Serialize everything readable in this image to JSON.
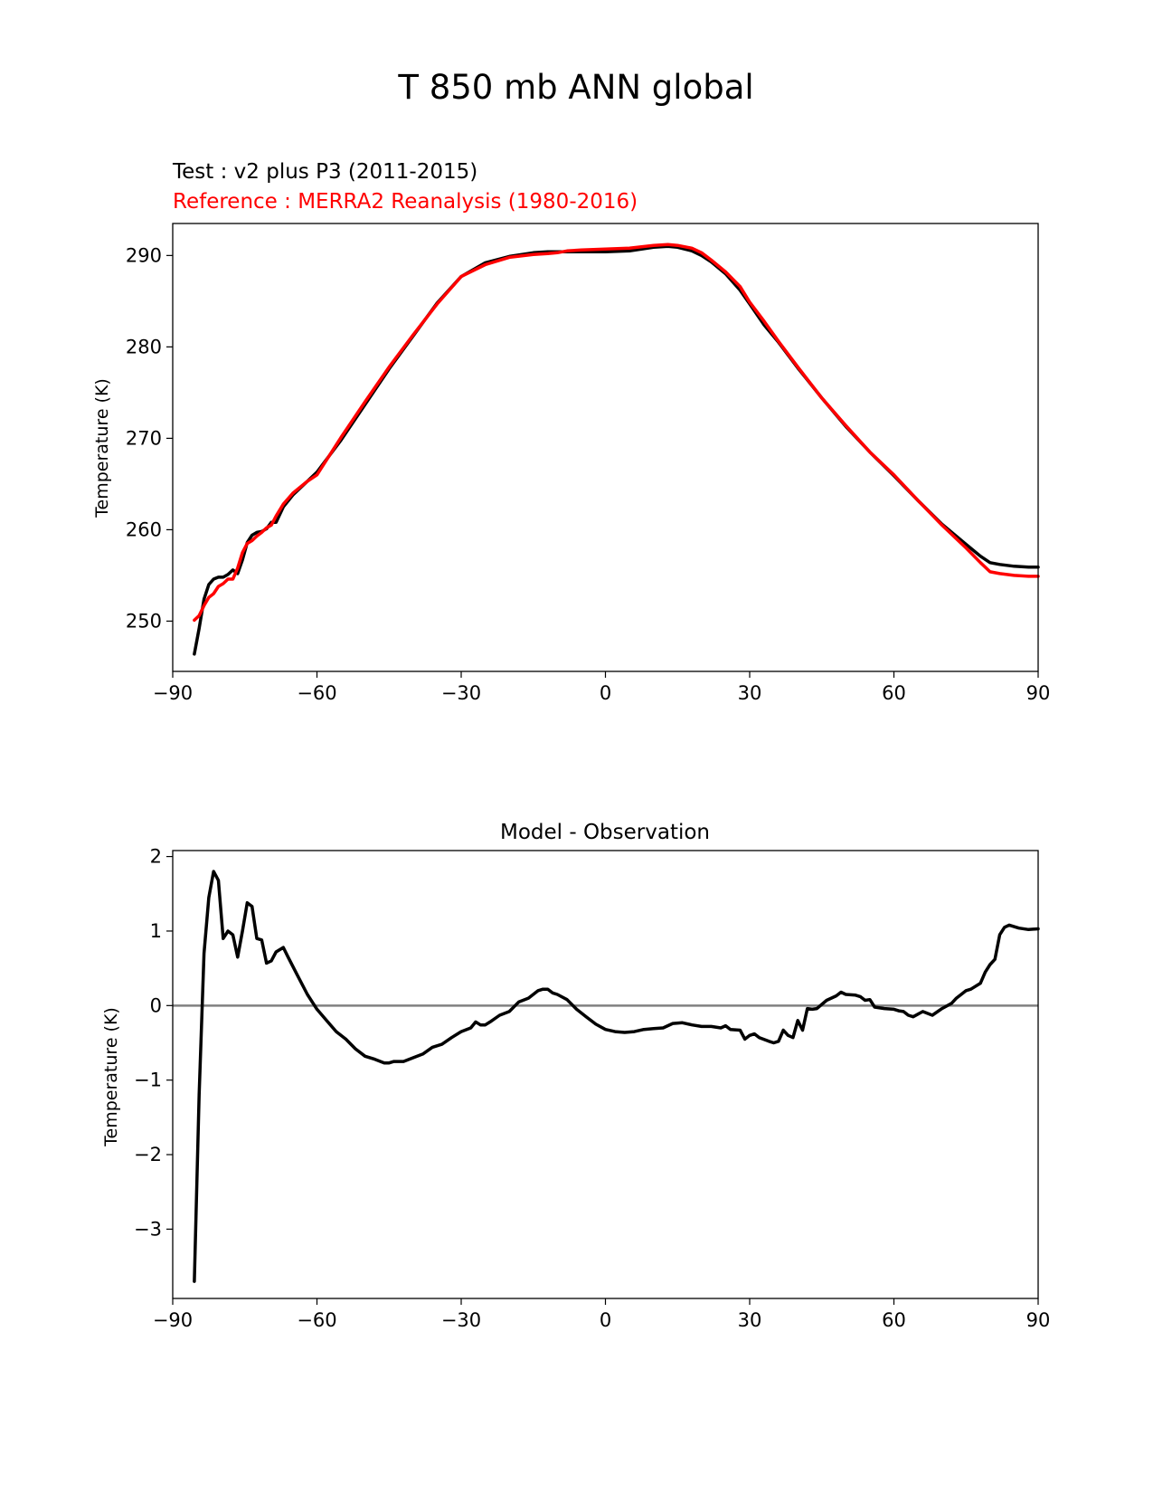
{
  "figure": {
    "title": "T 850 mb ANN global"
  },
  "chart_data": [
    {
      "type": "line",
      "subtitle_test": "Test : v2 plus P3 (2011-2015)",
      "subtitle_reference": "Reference : MERRA2 Reanalysis (1980-2016)",
      "xlabel": "",
      "ylabel": "Temperature (K)",
      "xlim": [
        -90,
        90
      ],
      "ylim": [
        244.5,
        293.5
      ],
      "xticks": [
        -90,
        -60,
        -30,
        0,
        30,
        60,
        90
      ],
      "xtick_labels": [
        "−90",
        "−60",
        "−30",
        "0",
        "30",
        "60",
        "90"
      ],
      "yticks": [
        250,
        260,
        270,
        280,
        290
      ],
      "ytick_labels": [
        "250",
        "260",
        "270",
        "280",
        "290"
      ],
      "series": [
        {
          "name": "Test : v2 plus P3 (2011-2015)",
          "color": "#000000",
          "x": [
            -85.5,
            -84.5,
            -83.5,
            -82.5,
            -81.5,
            -80.5,
            -79.5,
            -78.5,
            -77.5,
            -76.5,
            -75.5,
            -74.5,
            -73.5,
            -72.5,
            -71.5,
            -70.5,
            -69.5,
            -68.5,
            -67,
            -65,
            -62,
            -60,
            -55,
            -50,
            -45,
            -40,
            -35,
            -30,
            -25,
            -20,
            -15,
            -12,
            -10,
            -8,
            -5,
            0,
            5,
            10,
            13,
            15,
            18,
            20,
            22,
            25,
            28,
            30,
            33,
            36,
            40,
            45,
            50,
            55,
            60,
            65,
            70,
            75,
            78,
            80,
            82,
            85,
            88,
            90
          ],
          "values": [
            246.4,
            249.2,
            252.4,
            254.0,
            254.6,
            254.8,
            254.8,
            255.1,
            255.6,
            255.2,
            256.7,
            258.6,
            259.4,
            259.7,
            259.8,
            260.1,
            260.8,
            260.8,
            262.5,
            263.8,
            265.3,
            266.3,
            269.8,
            273.7,
            277.6,
            281.2,
            284.8,
            287.7,
            289.2,
            289.9,
            290.3,
            290.4,
            290.4,
            290.4,
            290.4,
            290.4,
            290.5,
            290.9,
            291.0,
            290.9,
            290.5,
            290.0,
            289.3,
            288.0,
            286.2,
            284.7,
            282.4,
            280.5,
            277.7,
            274.4,
            271.3,
            268.5,
            265.9,
            263.2,
            260.6,
            258.4,
            257.1,
            256.4,
            256.2,
            256.0,
            255.9,
            255.9
          ]
        },
        {
          "name": "Reference : MERRA2 Reanalysis (1980-2016)",
          "color": "#ff0000",
          "x": [
            -85.5,
            -84.5,
            -83.5,
            -82.5,
            -81.5,
            -80.5,
            -79.5,
            -78.5,
            -77.5,
            -76.5,
            -75.5,
            -74.5,
            -73.5,
            -72.5,
            -71.5,
            -70.5,
            -69.5,
            -68.5,
            -67,
            -65,
            -62,
            -60,
            -55,
            -50,
            -45,
            -40,
            -35,
            -30,
            -25,
            -20,
            -15,
            -12,
            -10,
            -8,
            -5,
            0,
            5,
            10,
            13,
            15,
            18,
            20,
            22,
            25,
            28,
            30,
            33,
            36,
            40,
            45,
            50,
            55,
            60,
            65,
            70,
            75,
            78,
            80,
            82,
            85,
            88,
            90
          ],
          "values": [
            250.1,
            250.6,
            251.7,
            252.6,
            253.0,
            253.8,
            254.1,
            254.6,
            254.6,
            255.8,
            257.5,
            258.5,
            258.8,
            259.3,
            259.7,
            260.2,
            260.5,
            261.5,
            262.8,
            264.0,
            265.3,
            266.0,
            270.1,
            274.0,
            277.8,
            281.3,
            284.7,
            287.7,
            289.0,
            289.8,
            290.1,
            290.2,
            290.3,
            290.5,
            290.6,
            290.7,
            290.8,
            291.1,
            291.2,
            291.1,
            290.8,
            290.3,
            289.5,
            288.2,
            286.6,
            284.9,
            282.8,
            280.6,
            277.8,
            274.4,
            271.4,
            268.5,
            266.0,
            263.2,
            260.5,
            258.0,
            256.4,
            255.4,
            255.2,
            255.0,
            254.9,
            254.9
          ]
        }
      ]
    },
    {
      "type": "line",
      "title": "Model - Observation",
      "xlabel": "",
      "ylabel": "Temperature (K)",
      "xlim": [
        -90,
        90
      ],
      "ylim": [
        -3.93,
        2.08
      ],
      "xticks": [
        -90,
        -60,
        -30,
        0,
        30,
        60,
        90
      ],
      "xtick_labels": [
        "−90",
        "−60",
        "−30",
        "0",
        "30",
        "60",
        "90"
      ],
      "yticks": [
        -3,
        -2,
        -1,
        0,
        1,
        2
      ],
      "ytick_labels": [
        "−3",
        "−2",
        "−1",
        "0",
        "1",
        "2"
      ],
      "reference_line": {
        "value": 0,
        "color": "#808080"
      },
      "series": [
        {
          "name": "Model - Observation",
          "color": "#000000",
          "x": [
            -85.5,
            -84.5,
            -83.5,
            -82.5,
            -81.5,
            -80.5,
            -79.5,
            -78.5,
            -77.5,
            -76.5,
            -75.5,
            -74.5,
            -73.5,
            -72.5,
            -71.5,
            -70.5,
            -69.5,
            -68.5,
            -67,
            -66,
            -64,
            -62,
            -60,
            -58,
            -56,
            -54,
            -52,
            -50,
            -48,
            -46,
            -45,
            -44,
            -42,
            -40,
            -38,
            -36,
            -34,
            -32,
            -30,
            -28,
            -27,
            -26,
            -25,
            -24,
            -22,
            -20,
            -18,
            -16,
            -14,
            -13,
            -12,
            -11,
            -10,
            -8,
            -6,
            -4,
            -2,
            0,
            2,
            4,
            6,
            8,
            10,
            12,
            14,
            16,
            18,
            20,
            22,
            24,
            25,
            26,
            28,
            29,
            30,
            31,
            32,
            34,
            35,
            36,
            37,
            38,
            39,
            40,
            41,
            42,
            43,
            44,
            46,
            48,
            49,
            50,
            52,
            53,
            54,
            55,
            56,
            58,
            60,
            61,
            62,
            63,
            64,
            66,
            68,
            70,
            72,
            73,
            74,
            75,
            76,
            78,
            79,
            80,
            81,
            82,
            83,
            84,
            86,
            88,
            90
          ],
          "values": [
            -3.7,
            -1.2,
            0.7,
            1.45,
            1.8,
            1.68,
            0.9,
            1.0,
            0.95,
            0.65,
            1.0,
            1.38,
            1.33,
            0.9,
            0.88,
            0.57,
            0.6,
            0.72,
            0.78,
            0.65,
            0.4,
            0.15,
            -0.05,
            -0.2,
            -0.35,
            -0.45,
            -0.58,
            -0.68,
            -0.72,
            -0.77,
            -0.77,
            -0.75,
            -0.75,
            -0.7,
            -0.65,
            -0.56,
            -0.52,
            -0.43,
            -0.35,
            -0.3,
            -0.22,
            -0.26,
            -0.26,
            -0.22,
            -0.13,
            -0.08,
            0.05,
            0.1,
            0.2,
            0.22,
            0.22,
            0.17,
            0.15,
            0.08,
            -0.05,
            -0.15,
            -0.25,
            -0.32,
            -0.35,
            -0.36,
            -0.35,
            -0.32,
            -0.31,
            -0.3,
            -0.24,
            -0.23,
            -0.26,
            -0.28,
            -0.28,
            -0.3,
            -0.27,
            -0.32,
            -0.33,
            -0.45,
            -0.4,
            -0.38,
            -0.43,
            -0.48,
            -0.5,
            -0.48,
            -0.33,
            -0.4,
            -0.43,
            -0.2,
            -0.33,
            -0.04,
            -0.05,
            -0.04,
            0.07,
            0.13,
            0.18,
            0.15,
            0.14,
            0.12,
            0.07,
            0.08,
            -0.02,
            -0.04,
            -0.05,
            -0.07,
            -0.08,
            -0.13,
            -0.15,
            -0.08,
            -0.13,
            -0.04,
            0.03,
            0.1,
            0.15,
            0.2,
            0.22,
            0.3,
            0.45,
            0.55,
            0.62,
            0.95,
            1.05,
            1.08,
            1.04,
            1.02,
            1.03
          ]
        }
      ]
    }
  ]
}
